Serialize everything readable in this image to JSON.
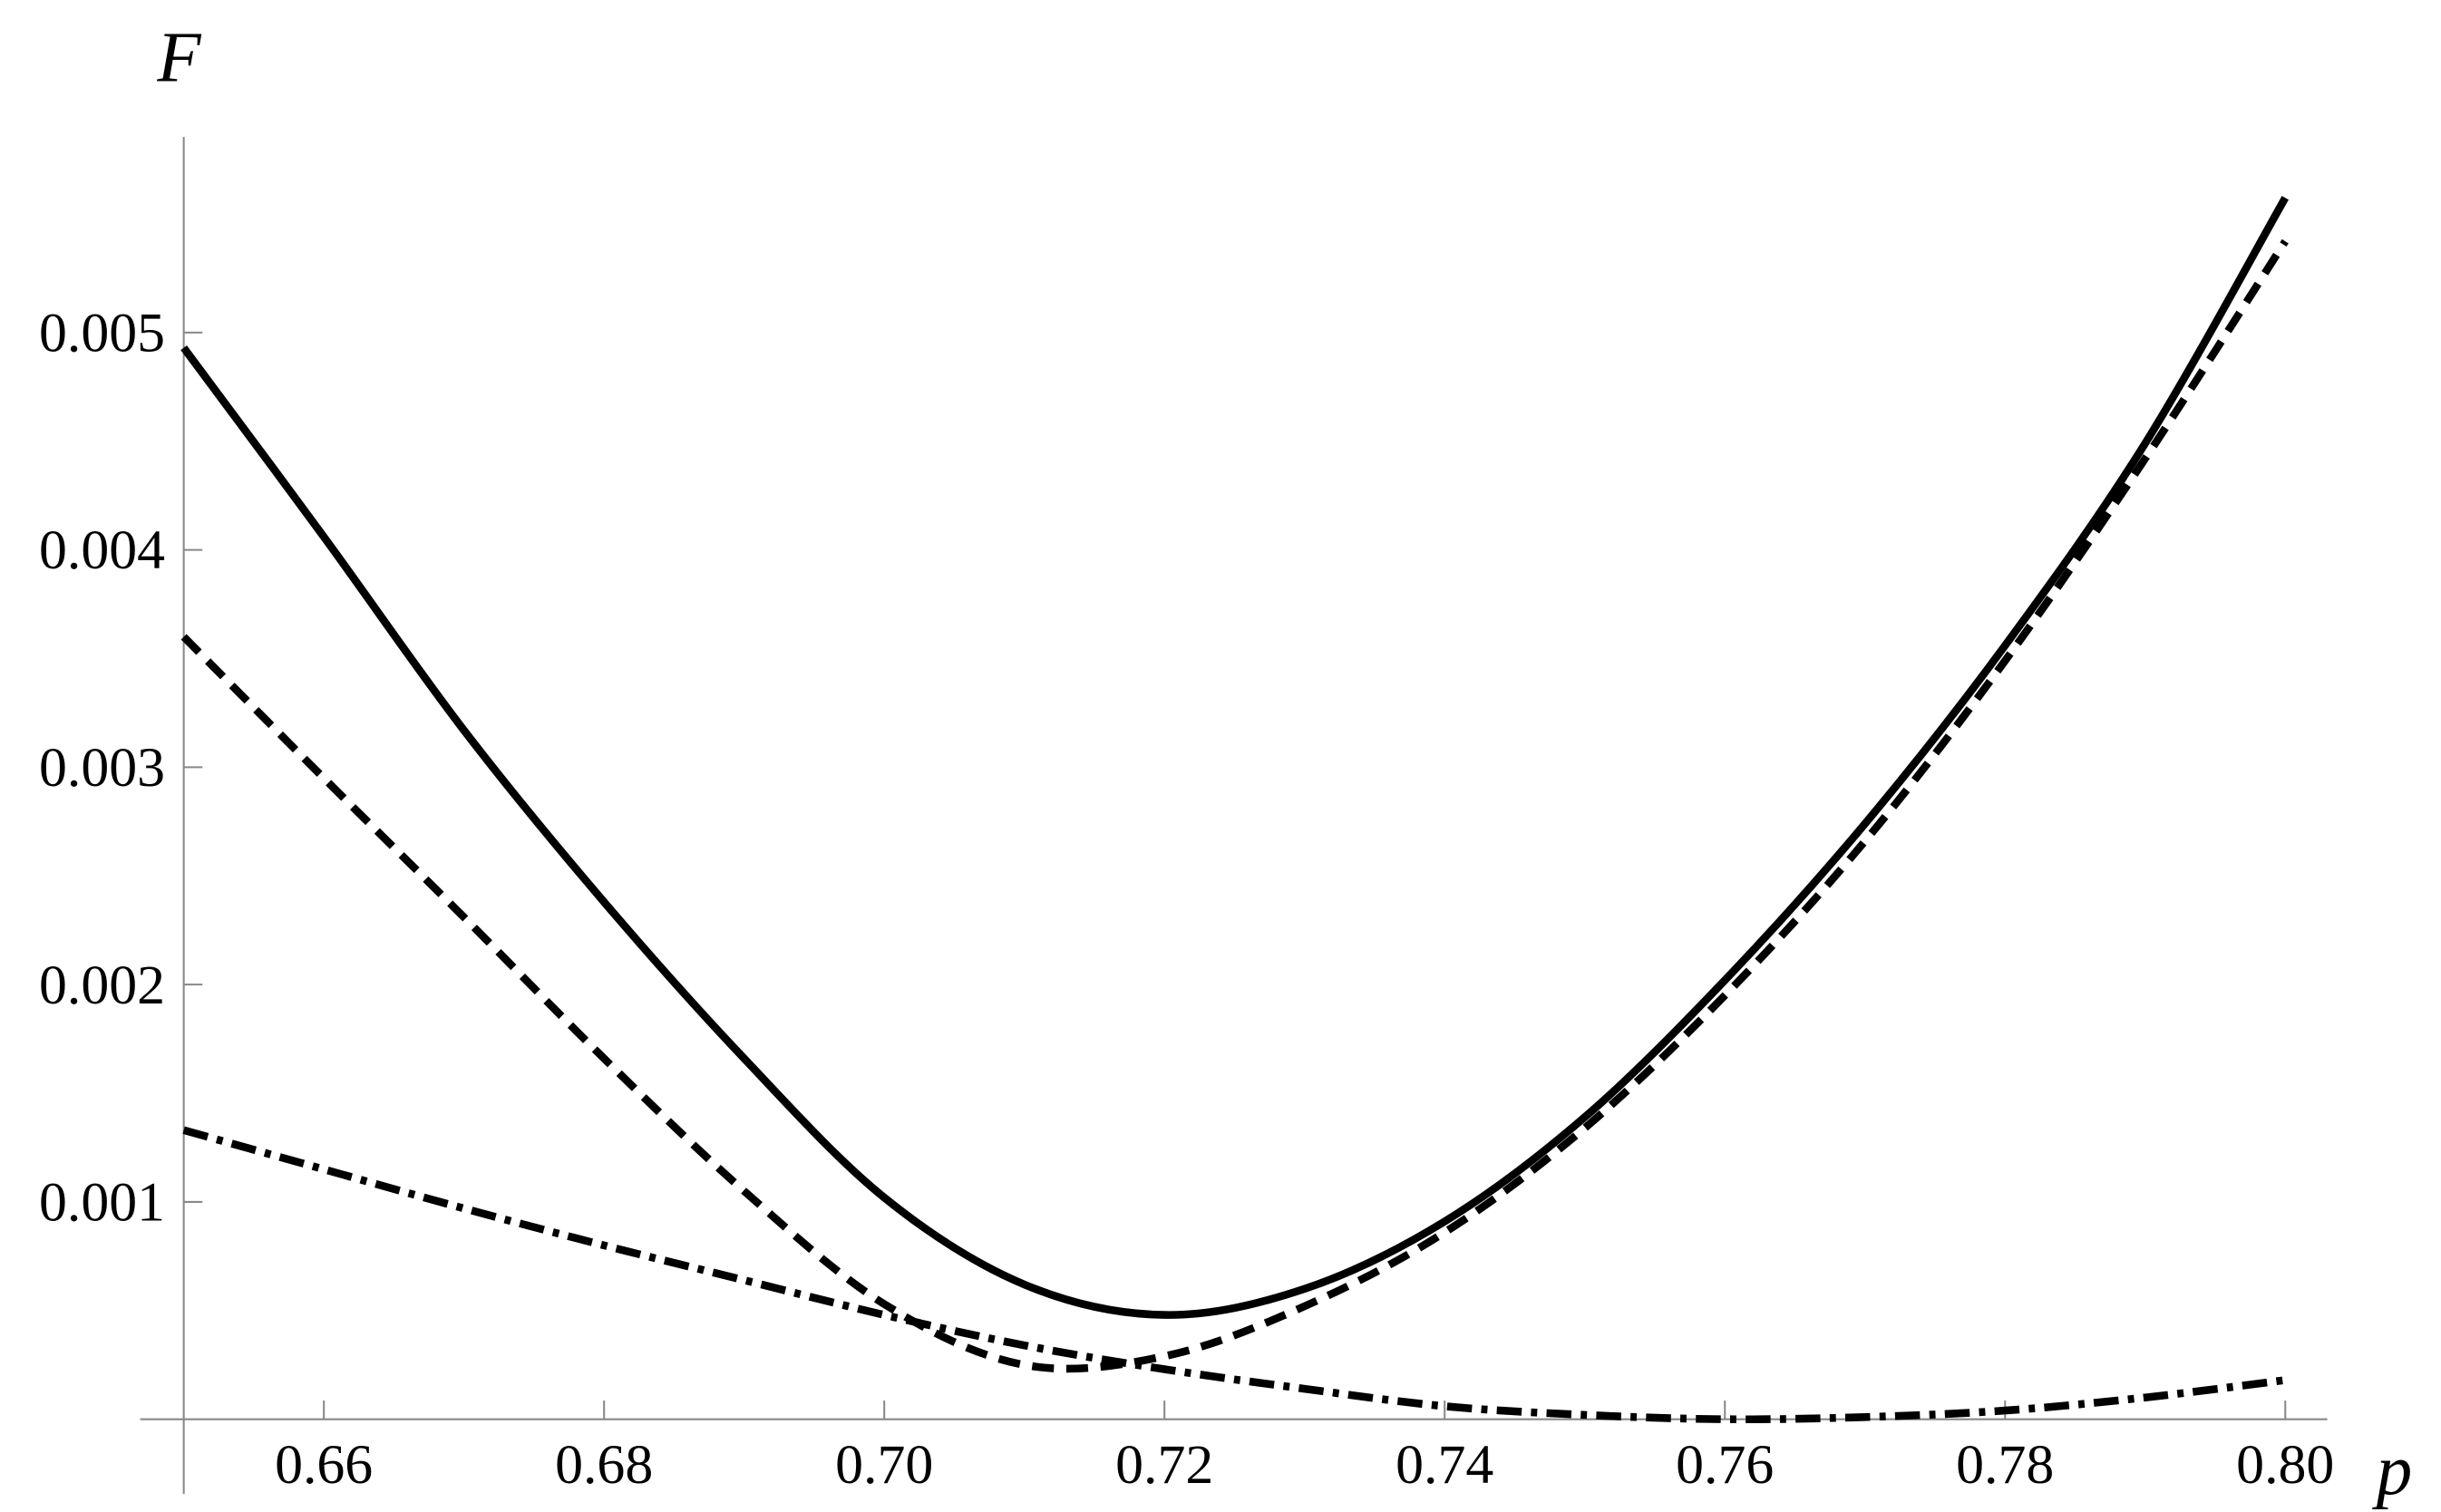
{
  "chart_data": {
    "type": "line",
    "x_label": "p",
    "y_label": "F",
    "x": [
      0.65,
      0.66,
      0.67,
      0.68,
      0.69,
      0.7,
      0.71,
      0.72,
      0.73,
      0.74,
      0.75,
      0.76,
      0.77,
      0.78,
      0.79,
      0.8
    ],
    "series": [
      {
        "color": "#000000",
        "line_style": "solid",
        "values": [
          0.00493,
          0.00406,
          0.00317,
          0.00238,
          0.00166,
          0.00102,
          0.00062,
          0.00048,
          0.0006,
          0.00091,
          0.00139,
          0.00202,
          0.00274,
          0.00356,
          0.00449,
          0.00562
        ]
      },
      {
        "color": "#000000",
        "line_style": "dashed",
        "values": [
          0.0036,
          0.00295,
          0.00231,
          0.00166,
          0.00105,
          0.00053,
          0.00025,
          0.00029,
          0.00052,
          0.00086,
          0.00134,
          0.00195,
          0.00266,
          0.00349,
          0.00442,
          0.00542
        ]
      },
      {
        "color": "#000000",
        "line_style": "dashdot",
        "values": [
          0.00133,
          0.00115,
          0.00097,
          0.0008,
          0.00064,
          0.00048,
          0.00034,
          0.00023,
          0.00014,
          6e-05,
          2e-05,
          0.0,
          1e-05,
          4e-05,
          0.0001,
          0.00018
        ]
      }
    ],
    "xlim": [
      0.65,
      0.803
    ],
    "ylim": [
      0,
      0.0059
    ],
    "xticks": [
      0.66,
      0.68,
      {
        "value": 0.7,
        "label": "0.70"
      },
      0.72,
      0.74,
      0.76,
      0.78,
      {
        "value": 0.8,
        "label": "0.80"
      }
    ],
    "yticks": [
      0.001,
      0.002,
      0.003,
      0.004,
      0.005
    ],
    "grid": false
  }
}
